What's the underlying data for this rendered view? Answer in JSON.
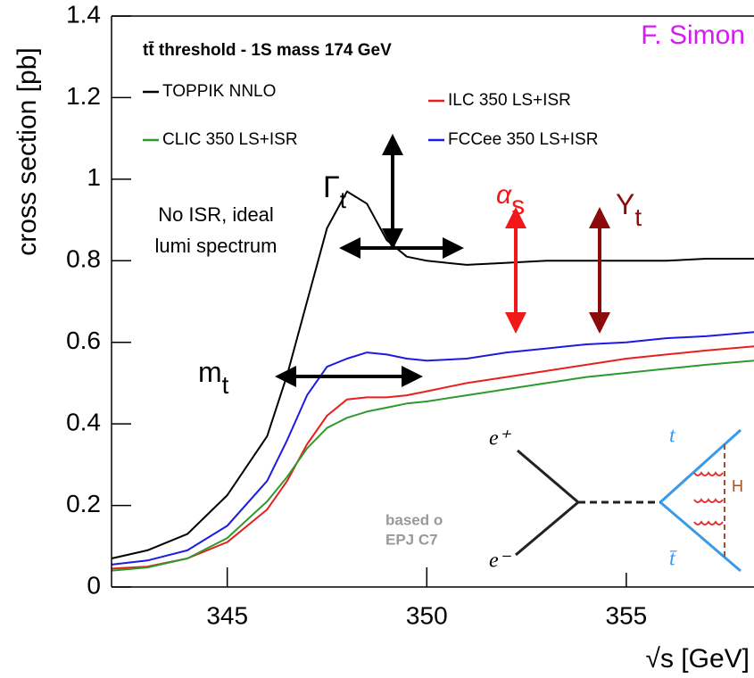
{
  "chart_data": {
    "type": "line",
    "title": "tt̄ threshold - 1S mass 174 GeV",
    "author": "F. Simon",
    "x_label": "√s [GeV]",
    "y_label": "cross section [pb]",
    "xlim": [
      342.1,
      358.2
    ],
    "ylim": [
      0,
      1.4
    ],
    "xticks": [
      345,
      350,
      355
    ],
    "yticks": [
      0,
      0.2,
      0.4,
      0.6,
      0.8,
      1,
      1.2,
      1.4
    ],
    "x": [
      342.1,
      343,
      344,
      345,
      346,
      346.5,
      347,
      347.5,
      348,
      348.5,
      349,
      349.5,
      350,
      351,
      352,
      353,
      354,
      355,
      356,
      357,
      358.2
    ],
    "series": [
      {
        "name": "TOPPIK NNLO",
        "color": "#000000",
        "values": [
          0.07,
          0.09,
          0.13,
          0.225,
          0.37,
          0.52,
          0.7,
          0.88,
          0.97,
          0.94,
          0.85,
          0.81,
          0.8,
          0.79,
          0.795,
          0.8,
          0.8,
          0.8,
          0.8,
          0.805,
          0.805
        ]
      },
      {
        "name": "ILC 350 LS+ISR",
        "color": "#e8201c",
        "values": [
          0.045,
          0.05,
          0.07,
          0.11,
          0.19,
          0.26,
          0.35,
          0.42,
          0.46,
          0.465,
          0.465,
          0.47,
          0.48,
          0.5,
          0.515,
          0.53,
          0.545,
          0.56,
          0.57,
          0.58,
          0.59
        ]
      },
      {
        "name": "CLIC 350 LS+ISR",
        "color": "#2e9a2e",
        "values": [
          0.04,
          0.048,
          0.07,
          0.12,
          0.21,
          0.27,
          0.34,
          0.39,
          0.415,
          0.43,
          0.44,
          0.45,
          0.455,
          0.47,
          0.485,
          0.5,
          0.515,
          0.525,
          0.535,
          0.545,
          0.555
        ]
      },
      {
        "name": "FCCee 350 LS+ISR",
        "color": "#1c1ce0",
        "values": [
          0.055,
          0.065,
          0.09,
          0.15,
          0.26,
          0.36,
          0.47,
          0.54,
          0.56,
          0.575,
          0.57,
          0.56,
          0.555,
          0.56,
          0.575,
          0.585,
          0.595,
          0.6,
          0.61,
          0.615,
          0.625
        ]
      }
    ],
    "annotations": {
      "no_isr": [
        "No ISR, ideal",
        "lumi spectrum"
      ],
      "gamma": {
        "main": "Γ",
        "sub": "t"
      },
      "alpha": {
        "main": "α",
        "sub": "s"
      },
      "yukawa": {
        "main": "Y",
        "sub": "t"
      },
      "mass": {
        "main": "m",
        "sub": "t"
      },
      "reference": [
        "based o",
        "EPJ C7"
      ]
    },
    "diagram": {
      "e_plus": "e⁺",
      "e_minus": "e⁻",
      "top": "t",
      "antitop": "t̄",
      "higgs": "H"
    }
  }
}
